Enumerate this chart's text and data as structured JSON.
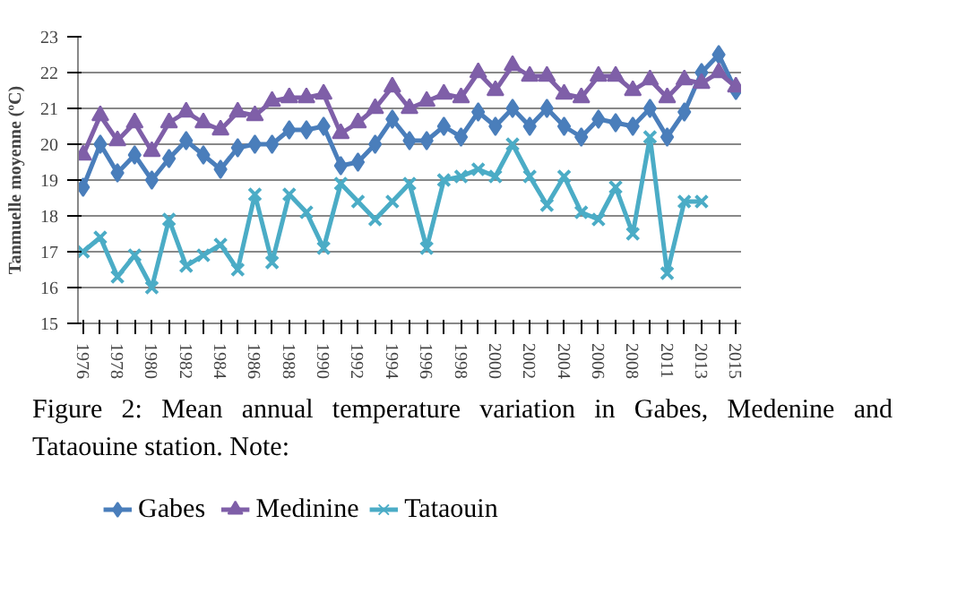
{
  "chart_data": {
    "type": "line",
    "ylabel": "Tanmuelle moyenne (ºC)",
    "categories": [
      "1976",
      null,
      "1978",
      null,
      "1980",
      null,
      "1982",
      null,
      "1984",
      null,
      "1986",
      null,
      "1988",
      null,
      "1990",
      null,
      "1992",
      null,
      "1994",
      null,
      "1996",
      null,
      "1998",
      null,
      "2000",
      null,
      "2002",
      null,
      "2004",
      null,
      "2006",
      null,
      "2008",
      null,
      "2011",
      null,
      "2013",
      null,
      "2015"
    ],
    "series": [
      {
        "name": "Gabes",
        "color": "#4a7ebb",
        "marker": "diamond",
        "values": [
          18.8,
          20.0,
          19.2,
          19.7,
          19.0,
          19.6,
          20.1,
          19.7,
          19.3,
          19.9,
          20.0,
          20.0,
          20.4,
          20.4,
          20.5,
          19.4,
          19.5,
          20.0,
          20.7,
          20.1,
          20.1,
          20.5,
          20.2,
          20.9,
          20.5,
          21.0,
          20.5,
          21.0,
          20.5,
          20.2,
          20.7,
          20.6,
          20.5,
          21.0,
          20.2,
          20.9,
          22.0,
          22.5,
          21.5
        ]
      },
      {
        "name": "Medinine",
        "color": "#7f5fa8",
        "marker": "triangle",
        "values": [
          19.7,
          20.8,
          20.1,
          20.6,
          19.8,
          20.6,
          20.9,
          20.6,
          20.4,
          20.9,
          20.8,
          21.2,
          21.3,
          21.3,
          21.4,
          20.3,
          20.6,
          21.0,
          21.6,
          21.0,
          21.2,
          21.4,
          21.3,
          22.0,
          21.5,
          22.2,
          21.9,
          21.9,
          21.4,
          21.3,
          21.9,
          21.9,
          21.5,
          21.8,
          21.3,
          21.8,
          21.7,
          22.0,
          21.6
        ]
      },
      {
        "name": "Tataouin",
        "color": "#4bacc6",
        "marker": "cross",
        "values": [
          17.0,
          17.4,
          16.3,
          16.9,
          16.0,
          17.9,
          16.6,
          16.9,
          17.2,
          16.5,
          18.6,
          16.7,
          18.6,
          18.1,
          17.1,
          18.9,
          18.4,
          17.9,
          18.4,
          18.9,
          17.1,
          19.0,
          19.1,
          19.3,
          19.1,
          20.0,
          19.1,
          18.3,
          19.1,
          18.1,
          17.9,
          18.8,
          17.5,
          20.2,
          16.4,
          18.4,
          18.4,
          null,
          null
        ]
      }
    ],
    "ylim": [
      15,
      23
    ],
    "yticks": [
      15,
      16,
      17,
      18,
      19,
      20,
      21,
      22,
      23
    ],
    "grid": "y",
    "legend": "bottom",
    "annotations": [
      "Figure 2: Mean annual temperature variation in Gabes, Medenine and Tataouine station. Note:"
    ]
  }
}
